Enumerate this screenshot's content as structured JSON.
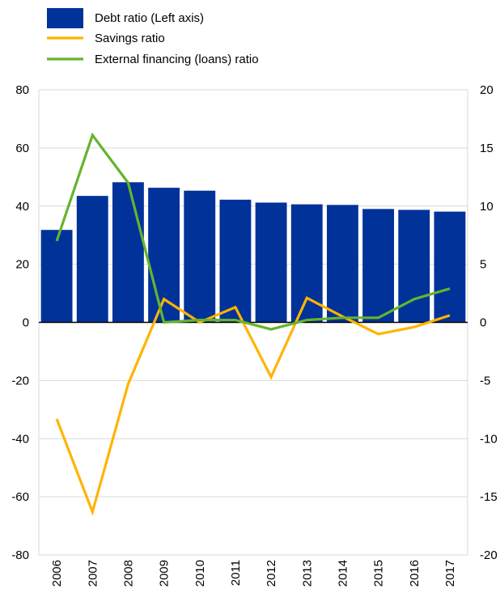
{
  "chart_data": {
    "type": "bar",
    "categories": [
      "2006",
      "2007",
      "2008",
      "2009",
      "2010",
      "2011",
      "2012",
      "2013",
      "2014",
      "2015",
      "2016",
      "2017"
    ],
    "series": [
      {
        "name": "Debt ratio (Left axis)",
        "type": "bar",
        "axis": "left",
        "color": "#003299",
        "values": [
          31.8,
          43.5,
          48.2,
          46.3,
          45.3,
          42.2,
          41.2,
          40.6,
          40.4,
          39.0,
          38.7,
          38.1
        ]
      },
      {
        "name": "Savings ratio",
        "type": "line",
        "axis": "right",
        "color": "#FFB400",
        "values": [
          -8.3,
          -16.3,
          -5.3,
          2.0,
          0.0,
          1.3,
          -4.7,
          2.1,
          0.5,
          -1.0,
          -0.4,
          0.6
        ]
      },
      {
        "name": "External financing (loans) ratio",
        "type": "line",
        "axis": "right",
        "color": "#65B32E",
        "values": [
          7.0,
          16.1,
          12.0,
          0.0,
          0.2,
          0.2,
          -0.6,
          0.2,
          0.4,
          0.4,
          2.0,
          2.9
        ]
      }
    ],
    "y_left": {
      "lim": [
        -80,
        80
      ],
      "ticks": [
        "80",
        "60",
        "40",
        "20",
        "0",
        "-20",
        "-40",
        "-60",
        "-80"
      ],
      "tick_values": [
        80,
        60,
        40,
        20,
        0,
        -20,
        -40,
        -60,
        -80
      ]
    },
    "y_right": {
      "lim": [
        -20,
        20
      ],
      "ticks": [
        "20",
        "15",
        "10",
        "5",
        "0",
        "-5",
        "-10",
        "-15",
        "-20"
      ],
      "tick_values": [
        20,
        15,
        10,
        5,
        0,
        -5,
        -10,
        -15,
        -20
      ]
    },
    "grid": true,
    "legend_position": "top-left",
    "title": "",
    "xlabel": "",
    "ylabel": "",
    "grid_color": "#d9d9d9",
    "zero_line_color": "#000000"
  }
}
